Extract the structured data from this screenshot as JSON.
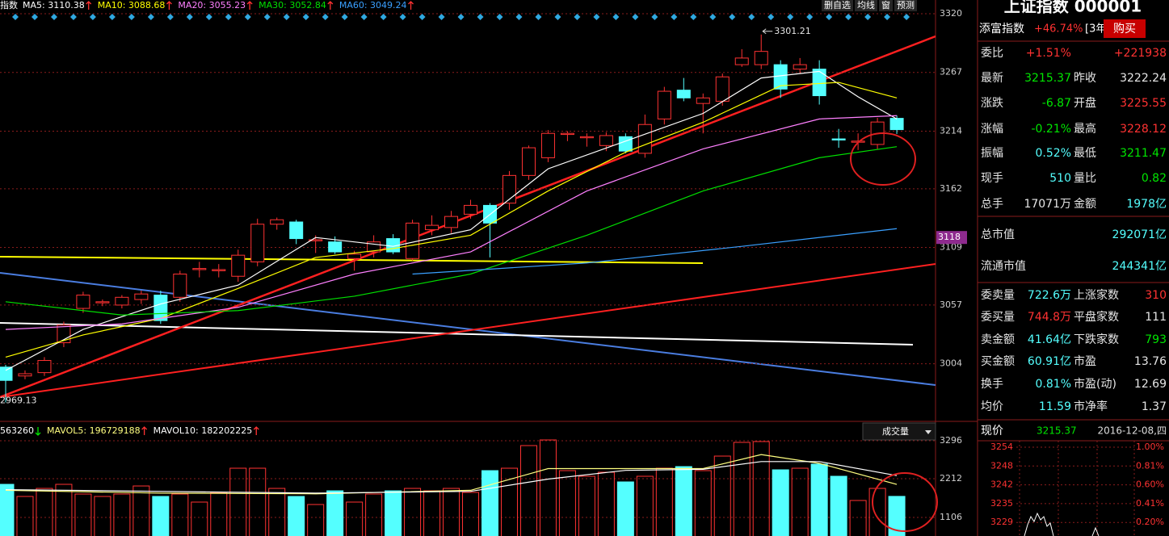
{
  "chart_data": [
    {
      "type": "candlestick",
      "legend_title": "指数",
      "buttons": [
        "删自选",
        "均线",
        "窗",
        "预测"
      ],
      "indicators": [
        {
          "label": "MA5: 3110.38",
          "trend": "up",
          "color": "#ffffff",
          "x": [
            0,
            4,
            8,
            12,
            16,
            20,
            24,
            28,
            32,
            36,
            39,
            42,
            44,
            46
          ],
          "values": [
            2998,
            3035,
            3058,
            3075,
            3118,
            3110,
            3125,
            3180,
            3205,
            3230,
            3262,
            3268,
            3245,
            3225
          ]
        },
        {
          "label": "MA10: 3088.68",
          "trend": "up",
          "color": "#ffff00",
          "x": [
            0,
            4,
            8,
            12,
            16,
            20,
            24,
            28,
            32,
            36,
            40,
            43,
            46
          ],
          "values": [
            3010,
            3030,
            3045,
            3072,
            3100,
            3108,
            3120,
            3160,
            3195,
            3222,
            3255,
            3258,
            3244
          ]
        },
        {
          "label": "MA20: 3055.23",
          "trend": "up",
          "color": "#ff80ff",
          "x": [
            0,
            6,
            12,
            18,
            24,
            30,
            36,
            42,
            46
          ],
          "values": [
            3035,
            3040,
            3055,
            3085,
            3105,
            3160,
            3198,
            3225,
            3228
          ]
        },
        {
          "label": "MA30: 3052.84",
          "trend": "up",
          "color": "#00e000",
          "x": [
            0,
            6,
            12,
            18,
            24,
            30,
            36,
            42,
            46
          ],
          "values": [
            3060,
            3048,
            3052,
            3065,
            3085,
            3120,
            3160,
            3190,
            3200
          ]
        },
        {
          "label": "MA60: 3049.24",
          "trend": "up",
          "color": "#3aa0ff",
          "x": [
            21,
            30,
            38,
            46
          ],
          "values": [
            3085,
            3095,
            3110,
            3126
          ]
        }
      ],
      "open": [
        3001,
        2993,
        2996,
        3023,
        3054,
        3059,
        3057,
        3062,
        3066,
        3064,
        3089,
        3088,
        3083,
        3096,
        3130,
        3132,
        3115,
        3114,
        3099,
        3105,
        3117,
        3099,
        3125,
        3127,
        3139,
        3147,
        3149,
        3174,
        3190,
        3211,
        3208,
        3201,
        3209,
        3194,
        3225,
        3251,
        3239,
        3241,
        3274,
        3274,
        3274,
        3270,
        3270,
        3207,
        3204,
        3202,
        3225.55
      ],
      "high": [
        3003,
        2998,
        3010,
        3042,
        3069,
        3062,
        3066,
        3070,
        3070,
        3088,
        3096,
        3094,
        3107,
        3135,
        3136,
        3134,
        3120,
        3119,
        3106,
        3120,
        3121,
        3134,
        3138,
        3142,
        3152,
        3149,
        3178,
        3201,
        3215,
        3214,
        3212,
        3213,
        3212,
        3229,
        3254,
        3262,
        3248,
        3266,
        3288,
        3301.21,
        3278,
        3280,
        3278,
        3216,
        3212,
        3226,
        3228.12
      ],
      "low": [
        2969.13,
        2990,
        2993,
        3019,
        3050,
        3056,
        3054,
        3058,
        3040,
        3060,
        3082,
        3082,
        3078,
        3092,
        3125,
        3112,
        3104,
        3103,
        3088,
        3100,
        3103,
        3097,
        3120,
        3122,
        3135,
        3100,
        3143,
        3170,
        3186,
        3205,
        3200,
        3196,
        3194,
        3190,
        3220,
        3241,
        3212,
        3237,
        3272,
        3270,
        3244,
        3266,
        3238,
        3199,
        3197,
        3198,
        3211.47
      ],
      "close": [
        2989,
        2995,
        3007,
        3039,
        3066,
        3060,
        3064,
        3067,
        3043,
        3085,
        3090,
        3089,
        3102,
        3130,
        3134,
        3117,
        3116,
        3105,
        3103,
        3114,
        3105,
        3131,
        3129,
        3137,
        3147,
        3131,
        3174,
        3199,
        3212,
        3212,
        3209,
        3210,
        3196,
        3220,
        3250,
        3244,
        3244,
        3263,
        3280,
        3286,
        3252,
        3274,
        3246,
        3206,
        3205,
        3222.24,
        3215.37
      ],
      "up_color": "#ff3232",
      "down_color": "#54ffff",
      "ylim": [
        2952,
        3320
      ],
      "yticks": [
        3320,
        3267,
        3214,
        3162,
        3109,
        3057,
        3004
      ],
      "grid": true,
      "marker": 3118,
      "marker_color": "#8e2a8e"
    },
    {
      "type": "bar",
      "header": "563260",
      "header_trend": "down",
      "selector": "成交量",
      "indicators": [
        {
          "label": "MAVOL5: 196729188",
          "trend": "up",
          "color": "#ffff80",
          "x": [
            0,
            8,
            16,
            24,
            28,
            32,
            36,
            39,
            42,
            46
          ],
          "values": [
            1880,
            1800,
            1780,
            1880,
            2500,
            2500,
            2500,
            2900,
            2650,
            2050
          ]
        },
        {
          "label": "MAVOL10: 182202225",
          "trend": "up",
          "color": "#ffffff",
          "x": [
            0,
            8,
            16,
            24,
            28,
            32,
            36,
            39,
            42,
            46
          ],
          "values": [
            1900,
            1850,
            1800,
            1850,
            2200,
            2450,
            2480,
            2700,
            2700,
            2300
          ]
        }
      ],
      "values": [
        2051,
        1705,
        1935,
        2051,
        1774,
        1705,
        1774,
        2004,
        1705,
        1774,
        1544,
        1820,
        2511,
        2511,
        1935,
        1705,
        1475,
        1866,
        1544,
        1774,
        1866,
        1935,
        1866,
        1935,
        1820,
        2442,
        2511,
        3157,
        3318,
        2442,
        2281,
        2396,
        2120,
        2281,
        2511,
        2557,
        2442,
        2857,
        3249,
        3272,
        2465,
        2511,
        2627,
        2281,
        1590,
        1935,
        1707
      ],
      "ylim": [
        0,
        3848
      ],
      "yticks": [
        1106,
        2212,
        3296
      ],
      "grid": true
    }
  ],
  "quote": {
    "title": "上证指数 000001",
    "fund": {
      "name": "添富指数",
      "change": "+46.74%",
      "period": "[3年]",
      "action": "购买"
    },
    "stats": [
      [
        {
          "text": "委比"
        },
        {
          "text": "+1.51%",
          "color": "#ff3232"
        },
        {
          "text": "+221938",
          "color": "#ff3232"
        }
      ],
      [
        {
          "text": "最新"
        },
        {
          "text": "3215.37",
          "color": "#00e600"
        },
        {
          "text": "昨收"
        },
        {
          "text": "3222.24"
        }
      ],
      [
        {
          "text": "涨跌"
        },
        {
          "text": "-6.87",
          "color": "#00e600"
        },
        {
          "text": "开盘"
        },
        {
          "text": "3225.55",
          "color": "#ff3232"
        }
      ],
      [
        {
          "text": "涨幅"
        },
        {
          "text": "-0.21%",
          "color": "#00e600"
        },
        {
          "text": "最高"
        },
        {
          "text": "3228.12",
          "color": "#ff3232"
        }
      ],
      [
        {
          "text": "振幅"
        },
        {
          "text": "0.52%",
          "color": "#54ffff"
        },
        {
          "text": "最低"
        },
        {
          "text": "3211.47",
          "color": "#00e600"
        }
      ],
      [
        {
          "text": "现手"
        },
        {
          "text": "510",
          "color": "#54ffff"
        },
        {
          "text": "量比"
        },
        {
          "text": "0.82",
          "color": "#00e600"
        }
      ],
      [
        {
          "text": "总手"
        },
        {
          "text": "17071万"
        },
        {
          "text": "金额"
        },
        {
          "text": "1978亿",
          "color": "#54ffff"
        }
      ]
    ],
    "market": [
      [
        {
          "text": "总市值"
        },
        {
          "text": "292071亿",
          "color": "#54ffff"
        }
      ],
      [
        {
          "text": "流通市值"
        },
        {
          "text": "244341亿",
          "color": "#54ffff"
        }
      ]
    ],
    "trade": [
      [
        {
          "text": "委卖量"
        },
        {
          "text": "722.6万",
          "color": "#54ffff"
        },
        {
          "text": "上涨家数"
        },
        {
          "text": "310",
          "color": "#ff3232"
        }
      ],
      [
        {
          "text": "委买量"
        },
        {
          "text": "744.8万",
          "color": "#ff3232"
        },
        {
          "text": "平盘家数"
        },
        {
          "text": "111"
        }
      ],
      [
        {
          "text": "卖金额"
        },
        {
          "text": "41.64亿",
          "color": "#54ffff"
        },
        {
          "text": "下跌家数"
        },
        {
          "text": "793",
          "color": "#00e600"
        }
      ],
      [
        {
          "text": "买金额"
        },
        {
          "text": "60.91亿",
          "color": "#54ffff"
        },
        {
          "text": "市盈"
        },
        {
          "text": "13.76"
        }
      ],
      [
        {
          "text": "换手"
        },
        {
          "text": "0.81%",
          "color": "#54ffff"
        },
        {
          "text": "市盈(动)"
        },
        {
          "text": "12.69"
        }
      ],
      [
        {
          "text": "均价"
        },
        {
          "text": "11.59",
          "color": "#54ffff"
        },
        {
          "text": "市净率"
        },
        {
          "text": "1.37"
        }
      ]
    ],
    "intraday": {
      "label": "现价",
      "price": "3215.37",
      "date": "2016-12-08,四",
      "price_ticks": [
        3254,
        3248,
        3242,
        3235,
        3229
      ],
      "pct_ticks": [
        "1.00%",
        "0.81%",
        "0.60%",
        "0.41%",
        "0.20%"
      ]
    }
  }
}
